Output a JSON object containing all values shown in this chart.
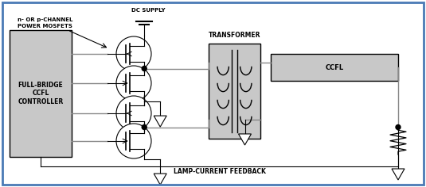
{
  "bg_color": "#ffffff",
  "border_color": "#4a7ab5",
  "fig_width": 5.35,
  "fig_height": 2.36,
  "gray": "#c8c8c8",
  "dark_gray": "#888888",
  "black": "#000000",
  "line_gray": "#888888",
  "controller_label": "FULL-BRIDGE\nCCFL\nCONTROLLER",
  "transformer_label": "TRANSFORMER",
  "ccfl_label": "CCFL",
  "mosfet_label_line1": "n- OR p-CHANNEL",
  "mosfet_label_line2": "POWER MOSFETS",
  "dc_supply_label": "DC SUPPLY",
  "lamp_feedback_label": "LAMP-CURRENT FEEDBACK"
}
